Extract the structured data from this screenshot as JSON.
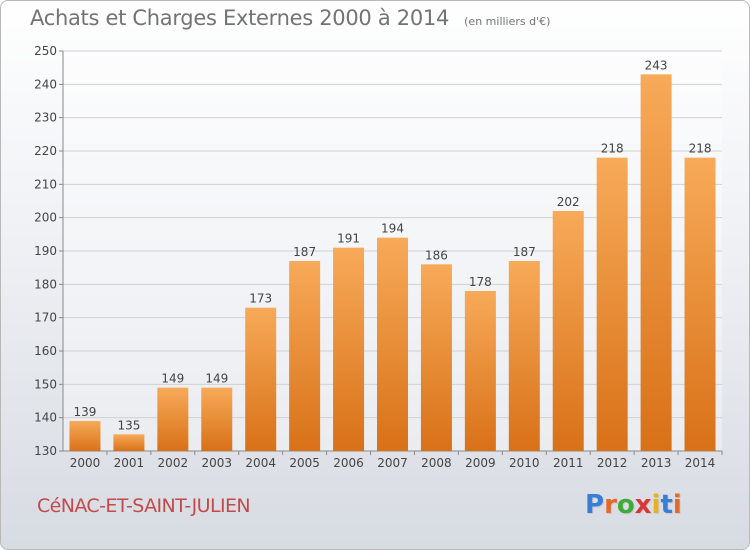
{
  "header": {
    "title": "Achats et Charges Externes 2000 à 2014",
    "unit": "(en milliers d'€)"
  },
  "footer": {
    "location": "CéNAC-ET-SAINT-JULIEN",
    "logo_text": "Proxiti",
    "logo_colors": [
      "#3a7dd6",
      "#e5682b",
      "#3faa3a",
      "#d93636",
      "#e9b21c",
      "#3a7dd6",
      "#e5682b"
    ]
  },
  "colors": {
    "bar_top": "#f7aa59",
    "bar_bottom": "#d87118",
    "axis_text": "#444444",
    "grid": "#d0d0d0"
  },
  "chart_data": {
    "type": "bar",
    "title": "Achats et Charges Externes 2000 à 2014",
    "subtitle": "(en milliers d'€)",
    "categories": [
      "2000",
      "2001",
      "2002",
      "2003",
      "2004",
      "2005",
      "2006",
      "2007",
      "2008",
      "2009",
      "2010",
      "2011",
      "2012",
      "2013",
      "2014"
    ],
    "values": [
      139,
      135,
      149,
      149,
      173,
      187,
      191,
      194,
      186,
      178,
      187,
      202,
      218,
      243,
      218
    ],
    "ylim": [
      130,
      250
    ],
    "yticks": [
      130,
      140,
      150,
      160,
      170,
      180,
      190,
      200,
      210,
      220,
      230,
      240,
      250
    ],
    "grid": true,
    "data_labels": true
  }
}
